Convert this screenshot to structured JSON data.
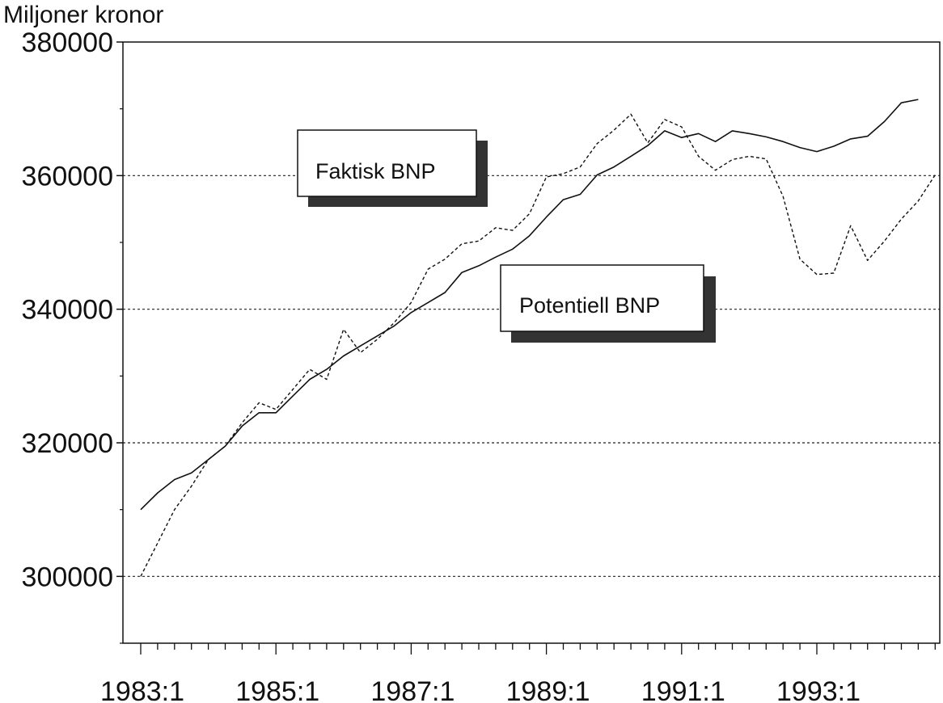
{
  "chart_data": {
    "type": "line",
    "title": "",
    "ylabel": "Miljoner kronor",
    "xlabel": "",
    "ylim": [
      290000,
      380000
    ],
    "yticks": [
      300000,
      320000,
      340000,
      360000,
      380000
    ],
    "ytick_labels": [
      "300000",
      "320000",
      "340000",
      "360000",
      "380000"
    ],
    "xticks": [
      0,
      8,
      16,
      24,
      32,
      40
    ],
    "xtick_labels": [
      "1983:1",
      "1985:1",
      "1987:1",
      "1989:1",
      "1991:1",
      "1993:1"
    ],
    "x_start": "1983:1",
    "x_end": "1995:4",
    "grid": true,
    "series": [
      {
        "name": "Potentiell BNP",
        "style": "solid",
        "color": "#111111",
        "values": [
          310000,
          312500,
          314500,
          315500,
          317500,
          319500,
          322500,
          324500,
          324500,
          327000,
          329500,
          331000,
          333000,
          334500,
          336000,
          337500,
          339500,
          341000,
          342500,
          345500,
          346500,
          347800,
          349000,
          351000,
          353800,
          356400,
          357200,
          360100,
          361300,
          362900,
          364500,
          366700,
          365700,
          366300,
          365100,
          366700,
          366300,
          365800,
          365100,
          364200,
          363600,
          364400,
          365500,
          365900,
          368100,
          370900,
          371400
        ]
      },
      {
        "name": "Faktisk BNP",
        "style": "dashed",
        "color": "#111111",
        "values": [
          300000,
          305000,
          310000,
          313500,
          317500,
          319500,
          323000,
          326000,
          325000,
          328000,
          331000,
          329500,
          337000,
          333500,
          335500,
          338000,
          341000,
          346000,
          347500,
          349800,
          350200,
          352200,
          351800,
          354300,
          359800,
          360300,
          361300,
          364800,
          366800,
          369200,
          364900,
          368400,
          367300,
          362900,
          360800,
          362400,
          362900,
          362500,
          356900,
          347500,
          345200,
          345400,
          352500,
          347300,
          350200,
          353500,
          356200,
          360100
        ]
      }
    ],
    "annotations": [
      "Faktisk BNP",
      "Potentiell BNP"
    ]
  }
}
